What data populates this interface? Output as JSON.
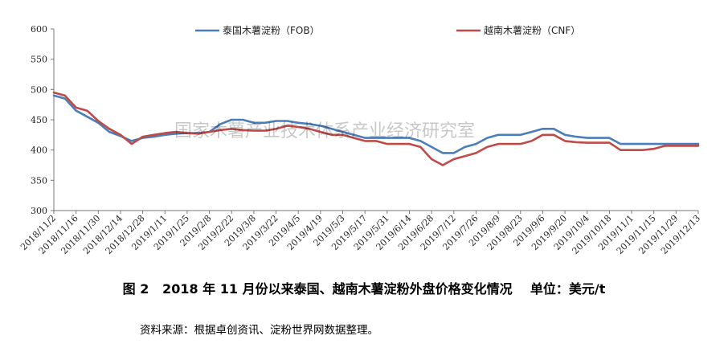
{
  "chart_data": {
    "type": "line",
    "title": "",
    "xlabel": "",
    "ylabel": "",
    "ylim": [
      300,
      600
    ],
    "yticks": [
      300,
      350,
      400,
      450,
      500,
      550,
      600
    ],
    "grid": false,
    "legend_position": "top",
    "x_tick_labels": [
      "2018/11/2",
      "2018/11/16",
      "2018/11/30",
      "2018/12/14",
      "2018/12/28",
      "2019/1/11",
      "2019/1/25",
      "2019/2/8",
      "2019/2/22",
      "2019/3/8",
      "2019/3/22",
      "2019/4/5",
      "2019/4/19",
      "2019/5/3",
      "2019/5/17",
      "2019/5/31",
      "2019/6/14",
      "2019/6/28",
      "2019/7/12",
      "2019/7/26",
      "2019/8/9",
      "2019/8/23",
      "2019/9/6",
      "2019/9/20",
      "2019/10/4",
      "2019/10/18",
      "2019/11/1",
      "2019/11/15",
      "2019/11/29",
      "2019/12/13"
    ],
    "series": [
      {
        "name": "泰国木薯淀粉（FOB）",
        "color": "#4a7ebb",
        "points": [
          [
            "2018/11/2",
            490
          ],
          [
            "2018/11/9",
            485
          ],
          [
            "2018/11/16",
            465
          ],
          [
            "2018/11/23",
            455
          ],
          [
            "2018/11/30",
            445
          ],
          [
            "2018/12/7",
            430
          ],
          [
            "2018/12/14",
            423
          ],
          [
            "2018/12/21",
            415
          ],
          [
            "2018/12/28",
            420
          ],
          [
            "2019/1/4",
            422
          ],
          [
            "2019/1/11",
            425
          ],
          [
            "2019/1/18",
            427
          ],
          [
            "2019/1/25",
            428
          ],
          [
            "2019/2/1",
            428
          ],
          [
            "2019/2/8",
            430
          ],
          [
            "2019/2/15",
            443
          ],
          [
            "2019/2/22",
            450
          ],
          [
            "2019/3/1",
            450
          ],
          [
            "2019/3/8",
            445
          ],
          [
            "2019/3/15",
            445
          ],
          [
            "2019/3/22",
            448
          ],
          [
            "2019/3/29",
            448
          ],
          [
            "2019/4/5",
            445
          ],
          [
            "2019/4/12",
            443
          ],
          [
            "2019/4/19",
            440
          ],
          [
            "2019/4/26",
            435
          ],
          [
            "2019/5/3",
            430
          ],
          [
            "2019/5/10",
            425
          ],
          [
            "2019/5/17",
            420
          ],
          [
            "2019/5/24",
            420
          ],
          [
            "2019/5/31",
            420
          ],
          [
            "2019/6/7",
            420
          ],
          [
            "2019/6/14",
            420
          ],
          [
            "2019/6/21",
            415
          ],
          [
            "2019/6/28",
            405
          ],
          [
            "2019/7/5",
            395
          ],
          [
            "2019/7/12",
            395
          ],
          [
            "2019/7/19",
            405
          ],
          [
            "2019/7/26",
            410
          ],
          [
            "2019/8/2",
            420
          ],
          [
            "2019/8/9",
            425
          ],
          [
            "2019/8/16",
            425
          ],
          [
            "2019/8/23",
            425
          ],
          [
            "2019/8/30",
            430
          ],
          [
            "2019/9/6",
            435
          ],
          [
            "2019/9/13",
            435
          ],
          [
            "2019/9/20",
            425
          ],
          [
            "2019/9/27",
            422
          ],
          [
            "2019/10/4",
            420
          ],
          [
            "2019/10/11",
            420
          ],
          [
            "2019/10/18",
            420
          ],
          [
            "2019/10/25",
            410
          ],
          [
            "2019/11/1",
            410
          ],
          [
            "2019/11/8",
            410
          ],
          [
            "2019/11/15",
            410
          ],
          [
            "2019/11/22",
            410
          ],
          [
            "2019/11/29",
            410
          ],
          [
            "2019/12/6",
            410
          ],
          [
            "2019/12/13",
            410
          ]
        ]
      },
      {
        "name": "越南木薯淀粉（CNF）",
        "color": "#be4b48",
        "points": [
          [
            "2018/11/2",
            495
          ],
          [
            "2018/11/9",
            490
          ],
          [
            "2018/11/16",
            470
          ],
          [
            "2018/11/23",
            465
          ],
          [
            "2018/11/30",
            448
          ],
          [
            "2018/12/7",
            435
          ],
          [
            "2018/12/14",
            425
          ],
          [
            "2018/12/21",
            410
          ],
          [
            "2018/12/28",
            422
          ],
          [
            "2019/1/4",
            425
          ],
          [
            "2019/1/11",
            428
          ],
          [
            "2019/1/18",
            430
          ],
          [
            "2019/1/25",
            428
          ],
          [
            "2019/2/1",
            427
          ],
          [
            "2019/2/8",
            430
          ],
          [
            "2019/2/15",
            433
          ],
          [
            "2019/2/22",
            435
          ],
          [
            "2019/3/1",
            433
          ],
          [
            "2019/3/8",
            432
          ],
          [
            "2019/3/15",
            432
          ],
          [
            "2019/3/22",
            435
          ],
          [
            "2019/3/29",
            440
          ],
          [
            "2019/4/5",
            438
          ],
          [
            "2019/4/12",
            435
          ],
          [
            "2019/4/19",
            430
          ],
          [
            "2019/4/26",
            425
          ],
          [
            "2019/5/3",
            425
          ],
          [
            "2019/5/10",
            420
          ],
          [
            "2019/5/17",
            415
          ],
          [
            "2019/5/24",
            415
          ],
          [
            "2019/5/31",
            410
          ],
          [
            "2019/6/7",
            410
          ],
          [
            "2019/6/14",
            410
          ],
          [
            "2019/6/21",
            405
          ],
          [
            "2019/6/28",
            385
          ],
          [
            "2019/7/5",
            375
          ],
          [
            "2019/7/12",
            385
          ],
          [
            "2019/7/19",
            390
          ],
          [
            "2019/7/26",
            395
          ],
          [
            "2019/8/2",
            405
          ],
          [
            "2019/8/9",
            410
          ],
          [
            "2019/8/16",
            410
          ],
          [
            "2019/8/23",
            410
          ],
          [
            "2019/8/30",
            415
          ],
          [
            "2019/9/6",
            425
          ],
          [
            "2019/9/13",
            425
          ],
          [
            "2019/9/20",
            415
          ],
          [
            "2019/9/27",
            413
          ],
          [
            "2019/10/4",
            412
          ],
          [
            "2019/10/11",
            412
          ],
          [
            "2019/10/18",
            412
          ],
          [
            "2019/10/25",
            400
          ],
          [
            "2019/11/1",
            400
          ],
          [
            "2019/11/8",
            400
          ],
          [
            "2019/11/15",
            402
          ],
          [
            "2019/11/22",
            407
          ],
          [
            "2019/11/29",
            407
          ],
          [
            "2019/12/6",
            407
          ],
          [
            "2019/12/13",
            407
          ]
        ]
      }
    ]
  },
  "watermark": "国家木薯产业技术体系产业经济研究室",
  "caption": "图 2   2018 年 11 月份以来泰国、越南木薯淀粉外盘价格变化情况    单位：美元/t",
  "source": "资料来源：根据卓创资讯、淀粉世界网数据整理。"
}
